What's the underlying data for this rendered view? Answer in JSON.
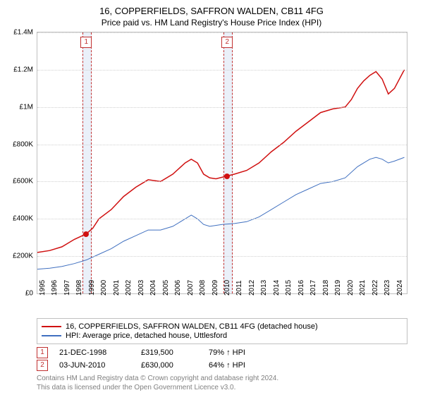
{
  "title": "16, COPPERFIELDS, SAFFRON WALDEN, CB11 4FG",
  "subtitle": "Price paid vs. HM Land Registry's House Price Index (HPI)",
  "chart": {
    "type": "line",
    "xlim": [
      1995,
      2025
    ],
    "ylim": [
      0,
      1400000
    ],
    "ytick_step": 200000,
    "yticks": [
      "£0",
      "£200K",
      "£400K",
      "£600K",
      "£800K",
      "£1M",
      "£1.2M",
      "£1.4M"
    ],
    "xticks": [
      1995,
      1996,
      1997,
      1998,
      1999,
      2000,
      2001,
      2002,
      2003,
      2004,
      2005,
      2006,
      2007,
      2008,
      2009,
      2010,
      2011,
      2012,
      2013,
      2014,
      2015,
      2016,
      2017,
      2018,
      2019,
      2020,
      2021,
      2022,
      2023,
      2024
    ],
    "background_color": "#ffffff",
    "grid_color": "#d0d0d0",
    "series": [
      {
        "name": "16, COPPERFIELDS, SAFFRON WALDEN, CB11 4FG (detached house)",
        "color": "#d01010",
        "line_width": 1.5,
        "data": [
          [
            1995,
            220000
          ],
          [
            1996,
            230000
          ],
          [
            1997,
            250000
          ],
          [
            1997.5,
            270000
          ],
          [
            1998,
            290000
          ],
          [
            1998.97,
            319500
          ],
          [
            1999.5,
            350000
          ],
          [
            2000,
            400000
          ],
          [
            2001,
            450000
          ],
          [
            2002,
            520000
          ],
          [
            2003,
            570000
          ],
          [
            2004,
            610000
          ],
          [
            2005,
            600000
          ],
          [
            2006,
            640000
          ],
          [
            2007,
            700000
          ],
          [
            2007.5,
            720000
          ],
          [
            2008,
            700000
          ],
          [
            2008.5,
            640000
          ],
          [
            2009,
            620000
          ],
          [
            2009.5,
            615000
          ],
          [
            2010.42,
            630000
          ],
          [
            2011,
            640000
          ],
          [
            2012,
            660000
          ],
          [
            2013,
            700000
          ],
          [
            2014,
            760000
          ],
          [
            2015,
            810000
          ],
          [
            2016,
            870000
          ],
          [
            2017,
            920000
          ],
          [
            2018,
            970000
          ],
          [
            2019,
            990000
          ],
          [
            2020,
            1000000
          ],
          [
            2020.5,
            1040000
          ],
          [
            2021,
            1100000
          ],
          [
            2021.5,
            1140000
          ],
          [
            2022,
            1170000
          ],
          [
            2022.5,
            1190000
          ],
          [
            2023,
            1150000
          ],
          [
            2023.5,
            1070000
          ],
          [
            2024,
            1100000
          ],
          [
            2024.8,
            1200000
          ]
        ]
      },
      {
        "name": "HPI: Average price, detached house, Uttlesford",
        "color": "#4070c0",
        "line_width": 1,
        "data": [
          [
            1995,
            130000
          ],
          [
            1996,
            135000
          ],
          [
            1997,
            145000
          ],
          [
            1998,
            160000
          ],
          [
            1999,
            180000
          ],
          [
            2000,
            210000
          ],
          [
            2001,
            240000
          ],
          [
            2002,
            280000
          ],
          [
            2003,
            310000
          ],
          [
            2004,
            340000
          ],
          [
            2005,
            340000
          ],
          [
            2006,
            360000
          ],
          [
            2007,
            400000
          ],
          [
            2007.5,
            420000
          ],
          [
            2008,
            400000
          ],
          [
            2008.5,
            370000
          ],
          [
            2009,
            360000
          ],
          [
            2010,
            370000
          ],
          [
            2011,
            375000
          ],
          [
            2012,
            385000
          ],
          [
            2013,
            410000
          ],
          [
            2014,
            450000
          ],
          [
            2015,
            490000
          ],
          [
            2016,
            530000
          ],
          [
            2017,
            560000
          ],
          [
            2018,
            590000
          ],
          [
            2019,
            600000
          ],
          [
            2020,
            620000
          ],
          [
            2021,
            680000
          ],
          [
            2022,
            720000
          ],
          [
            2022.5,
            730000
          ],
          [
            2023,
            720000
          ],
          [
            2023.5,
            700000
          ],
          [
            2024,
            710000
          ],
          [
            2024.8,
            730000
          ]
        ]
      }
    ],
    "sale_markers": [
      {
        "n": "1",
        "x": 1998.97,
        "y": 319500,
        "band_width_years": 0.6
      },
      {
        "n": "2",
        "x": 2010.42,
        "y": 630000,
        "band_width_years": 0.6
      }
    ],
    "marker_color": "#d01010",
    "marker_border": "#c03030"
  },
  "legend": {
    "items": [
      {
        "color": "#d01010",
        "label": "16, COPPERFIELDS, SAFFRON WALDEN, CB11 4FG (detached house)"
      },
      {
        "color": "#4070c0",
        "label": "HPI: Average price, detached house, Uttlesford"
      }
    ]
  },
  "sales": [
    {
      "n": "1",
      "date": "21-DEC-1998",
      "price": "£319,500",
      "ratio": "79%",
      "arrow": "↑",
      "ratio_label": "HPI"
    },
    {
      "n": "2",
      "date": "03-JUN-2010",
      "price": "£630,000",
      "ratio": "64%",
      "arrow": "↑",
      "ratio_label": "HPI"
    }
  ],
  "attribution": {
    "line1": "Contains HM Land Registry data © Crown copyright and database right 2024.",
    "line2": "This data is licensed under the Open Government Licence v3.0."
  }
}
